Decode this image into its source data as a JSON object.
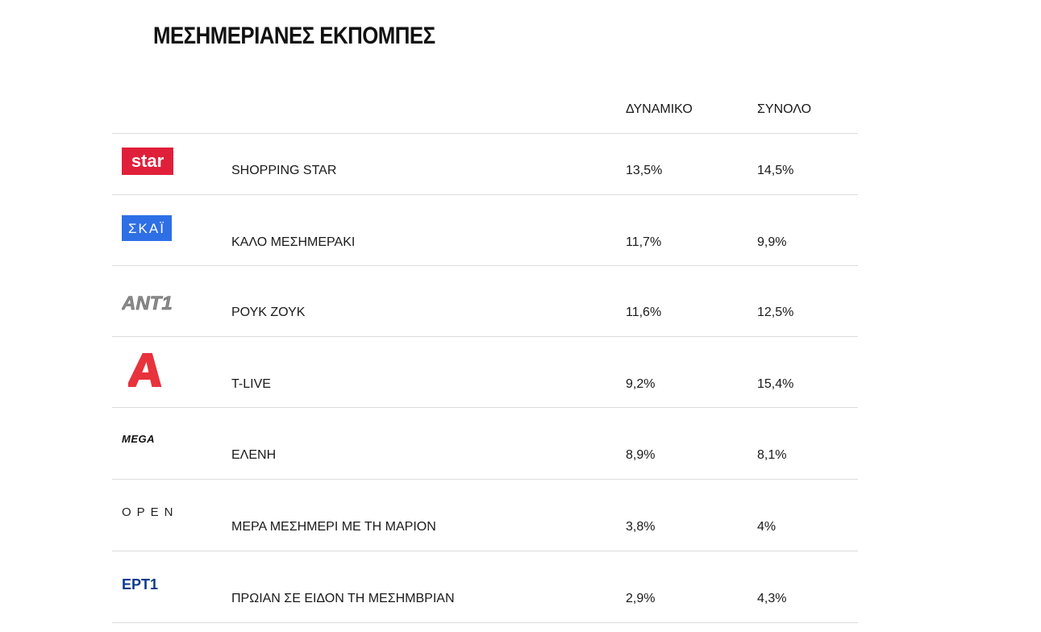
{
  "title": "ΜΕΣΗΜΕΡΙΑΝΕΣ ΕΚΠΟΜΠΕΣ",
  "columns": {
    "dynamic": "ΔΥΝΑΜΙΚΟ",
    "total": "ΣΥΝΟΛΟ"
  },
  "colors": {
    "star": "#e0203a",
    "skai": "#2f6fe6",
    "ant1": "#8a8a8a",
    "alpha": "#e8323c",
    "mega": "#111111",
    "open": "#222222",
    "ert": "#0b3a8c"
  },
  "rows": [
    {
      "channel_logo": "star-logo",
      "logo_text": "star",
      "show": "SHOPPING STAR",
      "dynamic": "13,5%",
      "total": "14,5%"
    },
    {
      "channel_logo": "skai-logo",
      "logo_text": "ΣΚΑΪ",
      "show": "ΚΑΛΟ ΜΕΣΗΜΕΡΑΚΙ",
      "dynamic": "11,7%",
      "total": "9,9%"
    },
    {
      "channel_logo": "ant1-logo",
      "logo_text": "ANT1",
      "show": "ΡΟΥΚ ΖΟΥΚ",
      "dynamic": "11,6%",
      "total": "12,5%"
    },
    {
      "channel_logo": "alpha-logo",
      "logo_text": "A",
      "show": "T-LIVE",
      "dynamic": "9,2%",
      "total": "15,4%"
    },
    {
      "channel_logo": "mega-logo",
      "logo_text": "MEGA",
      "show": "ΕΛΕΝΗ",
      "dynamic": "8,9%",
      "total": "8,1%"
    },
    {
      "channel_logo": "open-logo",
      "logo_text": "OPEN",
      "show": "ΜΕΡΑ ΜΕΣΗΜΕΡΙ ΜΕ ΤΗ ΜΑΡΙΟΝ",
      "dynamic": "3,8%",
      "total": "4%"
    },
    {
      "channel_logo": "ert1-logo",
      "logo_text": "ΕΡΤ1",
      "show": "ΠΡΩΙΑΝ ΣΕ ΕΙΔΟΝ ΤΗ ΜΕΣΗΜΒΡΙΑΝ",
      "dynamic": "2,9%",
      "total": "4,3%"
    }
  ]
}
